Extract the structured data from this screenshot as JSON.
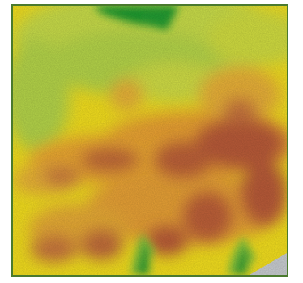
{
  "map": {
    "kind": "elevation-heatmap",
    "legend_visible": false,
    "labels_visible": false,
    "palette": {
      "low_dark_green": "#1e9a2e",
      "low_green": "#5cba3a",
      "light_green": "#a8d04a",
      "yellow_green": "#d8e040",
      "yellow": "#f2de1e",
      "orange": "#e8a030",
      "tan": "#d68a4a",
      "high_red_brown": "#b85a38",
      "water_gray": "#c8ccd0",
      "frame_green": "#4a7a2e"
    }
  }
}
